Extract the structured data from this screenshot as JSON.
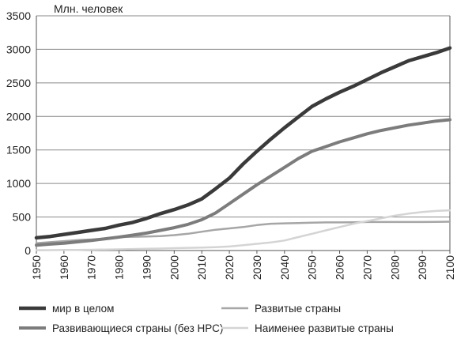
{
  "chart_data": {
    "type": "line",
    "unit_label": "Млн. человек",
    "x": [
      1950,
      1955,
      1960,
      1965,
      1970,
      1975,
      1980,
      1985,
      1990,
      1995,
      2000,
      2005,
      2010,
      2015,
      2020,
      2025,
      2030,
      2035,
      2040,
      2045,
      2050,
      2055,
      2060,
      2065,
      2070,
      2075,
      2080,
      2085,
      2090,
      2095,
      2100
    ],
    "ylim": [
      0,
      3500
    ],
    "yticks": [
      0,
      500,
      1000,
      1500,
      2000,
      2500,
      3000,
      3500
    ],
    "xticks": [
      1950,
      1960,
      1970,
      1980,
      1990,
      2000,
      2010,
      2020,
      2030,
      2040,
      2050,
      2060,
      2070,
      2080,
      2090,
      2100
    ],
    "grid": "horizontal",
    "legend_position": "bottom",
    "series": [
      {
        "name": "мир в целом",
        "color": "#3a3a3a",
        "values": [
          190,
          210,
          240,
          270,
          300,
          330,
          380,
          420,
          480,
          550,
          610,
          680,
          770,
          920,
          1080,
          1290,
          1480,
          1660,
          1830,
          1990,
          2150,
          2260,
          2360,
          2450,
          2550,
          2650,
          2740,
          2830,
          2890,
          2950,
          3020
        ]
      },
      {
        "name": "Развитые страны",
        "color": "#a6a6a6",
        "values": [
          110,
          125,
          140,
          155,
          165,
          180,
          200,
          205,
          210,
          215,
          230,
          250,
          280,
          310,
          330,
          350,
          380,
          400,
          405,
          410,
          415,
          420,
          420,
          422,
          425,
          425,
          425,
          425,
          426,
          428,
          430
        ]
      },
      {
        "name": "Развивающиеся страны (без НРС)",
        "color": "#7c7c7c",
        "values": [
          80,
          95,
          110,
          130,
          150,
          175,
          200,
          230,
          260,
          300,
          340,
          390,
          460,
          560,
          700,
          840,
          980,
          1110,
          1240,
          1370,
          1480,
          1550,
          1620,
          1680,
          1740,
          1790,
          1830,
          1870,
          1900,
          1930,
          1950
        ]
      },
      {
        "name": "Наименее развитые страны",
        "color": "#d4d4d4",
        "values": [
          5,
          6,
          8,
          10,
          12,
          15,
          18,
          22,
          26,
          30,
          35,
          40,
          45,
          50,
          60,
          80,
          100,
          120,
          150,
          200,
          250,
          300,
          350,
          400,
          440,
          480,
          520,
          550,
          575,
          590,
          600
        ]
      }
    ],
    "legend_layout": [
      [
        0,
        1
      ],
      [
        2,
        3
      ]
    ]
  }
}
